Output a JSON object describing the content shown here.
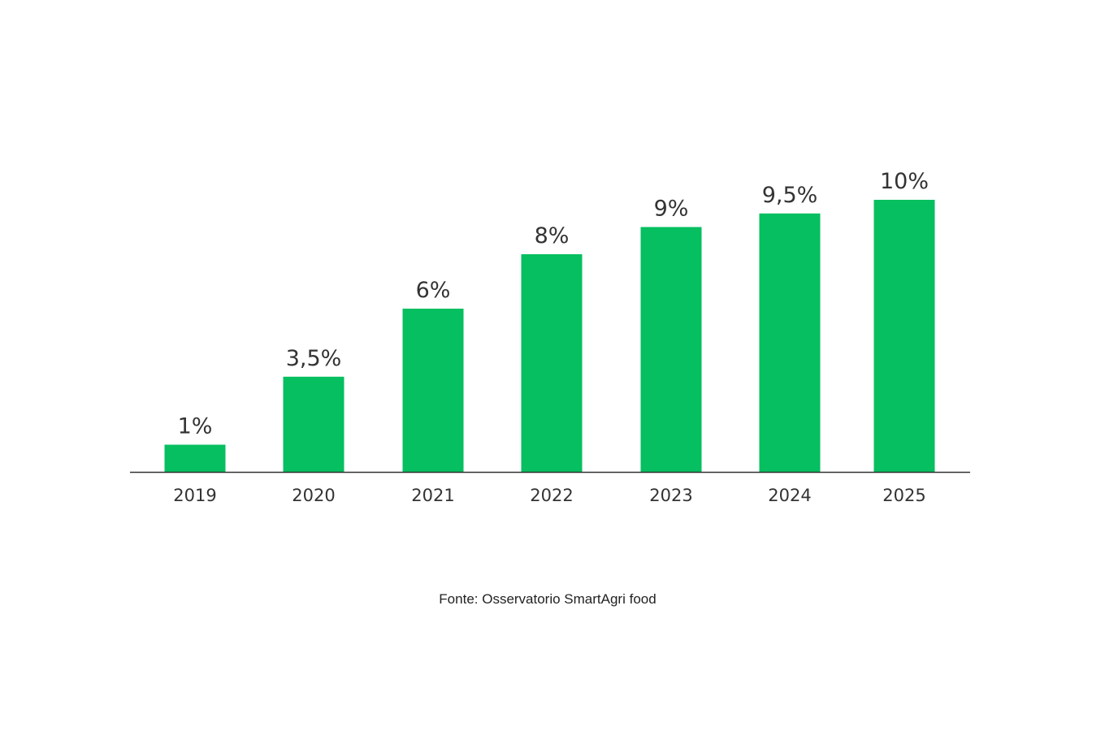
{
  "chart_data": {
    "type": "bar",
    "categories": [
      "2019",
      "2020",
      "2021",
      "2022",
      "2023",
      "2024",
      "2025"
    ],
    "values": [
      1,
      3.5,
      6,
      8,
      9,
      9.5,
      10
    ],
    "value_labels": [
      "1%",
      "3,5%",
      "6%",
      "8%",
      "9%",
      "9,5%",
      "10%"
    ],
    "title": "",
    "xlabel": "",
    "ylabel": "",
    "ylim": [
      0,
      10
    ],
    "grid": false,
    "legend": "none",
    "bar_color": "#06bf60",
    "axis_color": "#333333"
  },
  "source": "Fonte: Osservatorio SmartAgri food"
}
